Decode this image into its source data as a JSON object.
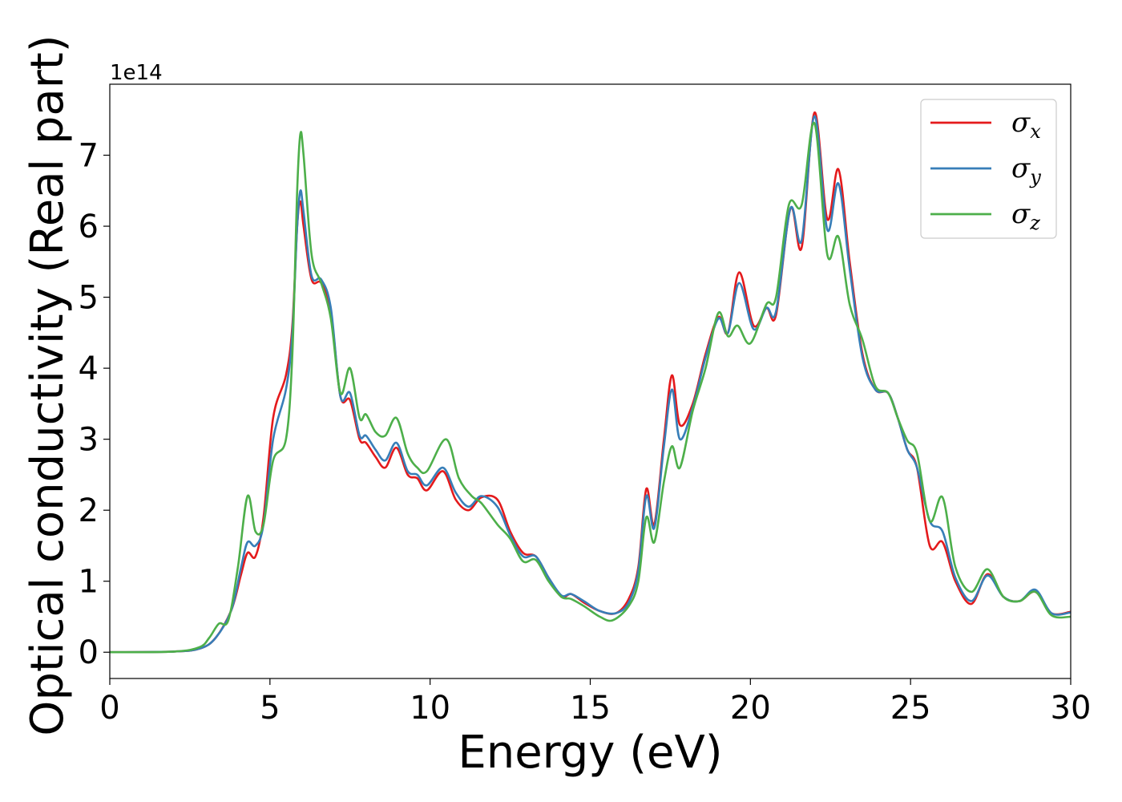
{
  "chart_data": {
    "type": "line",
    "xlabel": "Energy (eV)",
    "ylabel": "Optical conductivity (Real part)",
    "y_offset_label": "1e14",
    "xlim": [
      0,
      30
    ],
    "ylim": [
      -0.37,
      8.0
    ],
    "xticks": [
      0,
      5,
      10,
      15,
      20,
      25,
      30
    ],
    "yticks": [
      0,
      1,
      2,
      3,
      4,
      5,
      6,
      7
    ],
    "grid": false,
    "legend_position": "top-right",
    "series": [
      {
        "name": "σx",
        "symbol": "σ",
        "subscript": "x",
        "color": "#e41a1c",
        "points": [
          [
            0,
            0
          ],
          [
            2,
            0.01
          ],
          [
            2.8,
            0.05
          ],
          [
            3.3,
            0.2
          ],
          [
            3.8,
            0.6
          ],
          [
            4.1,
            1.1
          ],
          [
            4.3,
            1.4
          ],
          [
            4.55,
            1.35
          ],
          [
            4.8,
            1.9
          ],
          [
            5.1,
            3.3
          ],
          [
            5.5,
            3.9
          ],
          [
            5.7,
            4.6
          ],
          [
            5.85,
            6.0
          ],
          [
            5.95,
            6.35
          ],
          [
            6.05,
            6.0
          ],
          [
            6.3,
            5.25
          ],
          [
            6.6,
            5.2
          ],
          [
            6.9,
            4.8
          ],
          [
            7.2,
            3.6
          ],
          [
            7.5,
            3.55
          ],
          [
            7.8,
            3.0
          ],
          [
            8.0,
            2.95
          ],
          [
            8.3,
            2.75
          ],
          [
            8.6,
            2.6
          ],
          [
            8.95,
            2.88
          ],
          [
            9.3,
            2.5
          ],
          [
            9.6,
            2.45
          ],
          [
            9.9,
            2.28
          ],
          [
            10.4,
            2.55
          ],
          [
            10.8,
            2.15
          ],
          [
            11.2,
            2.0
          ],
          [
            11.6,
            2.18
          ],
          [
            12.1,
            2.15
          ],
          [
            12.5,
            1.7
          ],
          [
            12.9,
            1.4
          ],
          [
            13.3,
            1.35
          ],
          [
            13.7,
            1.05
          ],
          [
            14.1,
            0.78
          ],
          [
            14.4,
            0.82
          ],
          [
            14.8,
            0.7
          ],
          [
            15.3,
            0.58
          ],
          [
            15.8,
            0.55
          ],
          [
            16.2,
            0.75
          ],
          [
            16.5,
            1.2
          ],
          [
            16.75,
            2.3
          ],
          [
            17.0,
            1.8
          ],
          [
            17.3,
            3.0
          ],
          [
            17.55,
            3.9
          ],
          [
            17.8,
            3.2
          ],
          [
            18.2,
            3.5
          ],
          [
            18.6,
            4.2
          ],
          [
            19.0,
            4.72
          ],
          [
            19.3,
            4.5
          ],
          [
            19.65,
            5.35
          ],
          [
            20.1,
            4.6
          ],
          [
            20.5,
            4.85
          ],
          [
            20.8,
            4.75
          ],
          [
            21.25,
            6.25
          ],
          [
            21.6,
            5.7
          ],
          [
            22.0,
            7.6
          ],
          [
            22.4,
            6.1
          ],
          [
            22.75,
            6.8
          ],
          [
            23.1,
            5.5
          ],
          [
            23.5,
            4.2
          ],
          [
            23.9,
            3.7
          ],
          [
            24.3,
            3.65
          ],
          [
            24.6,
            3.3
          ],
          [
            24.9,
            2.85
          ],
          [
            25.2,
            2.6
          ],
          [
            25.6,
            1.5
          ],
          [
            26.0,
            1.55
          ],
          [
            26.4,
            1.0
          ],
          [
            26.9,
            0.68
          ],
          [
            27.4,
            1.1
          ],
          [
            27.9,
            0.78
          ],
          [
            28.4,
            0.72
          ],
          [
            28.9,
            0.85
          ],
          [
            29.4,
            0.55
          ],
          [
            30,
            0.57
          ]
        ]
      },
      {
        "name": "σy",
        "symbol": "σ",
        "subscript": "y",
        "color": "#377eb8",
        "points": [
          [
            0,
            0
          ],
          [
            2,
            0.01
          ],
          [
            2.8,
            0.05
          ],
          [
            3.3,
            0.2
          ],
          [
            3.8,
            0.6
          ],
          [
            4.1,
            1.2
          ],
          [
            4.3,
            1.55
          ],
          [
            4.55,
            1.5
          ],
          [
            4.8,
            1.8
          ],
          [
            5.1,
            3.0
          ],
          [
            5.5,
            3.7
          ],
          [
            5.7,
            4.5
          ],
          [
            5.85,
            6.0
          ],
          [
            5.95,
            6.5
          ],
          [
            6.05,
            6.2
          ],
          [
            6.3,
            5.3
          ],
          [
            6.6,
            5.25
          ],
          [
            6.9,
            4.85
          ],
          [
            7.2,
            3.6
          ],
          [
            7.5,
            3.65
          ],
          [
            7.8,
            3.05
          ],
          [
            8.0,
            3.05
          ],
          [
            8.3,
            2.85
          ],
          [
            8.6,
            2.7
          ],
          [
            8.95,
            2.95
          ],
          [
            9.3,
            2.55
          ],
          [
            9.6,
            2.5
          ],
          [
            9.9,
            2.35
          ],
          [
            10.4,
            2.6
          ],
          [
            10.8,
            2.25
          ],
          [
            11.2,
            2.05
          ],
          [
            11.6,
            2.2
          ],
          [
            12.1,
            2.05
          ],
          [
            12.5,
            1.65
          ],
          [
            12.9,
            1.35
          ],
          [
            13.3,
            1.35
          ],
          [
            13.7,
            1.05
          ],
          [
            14.1,
            0.8
          ],
          [
            14.4,
            0.82
          ],
          [
            14.8,
            0.72
          ],
          [
            15.3,
            0.58
          ],
          [
            15.8,
            0.55
          ],
          [
            16.2,
            0.7
          ],
          [
            16.5,
            1.15
          ],
          [
            16.75,
            2.2
          ],
          [
            17.0,
            1.75
          ],
          [
            17.3,
            2.9
          ],
          [
            17.55,
            3.7
          ],
          [
            17.8,
            3.0
          ],
          [
            18.2,
            3.45
          ],
          [
            18.6,
            4.15
          ],
          [
            19.0,
            4.7
          ],
          [
            19.3,
            4.5
          ],
          [
            19.65,
            5.2
          ],
          [
            20.1,
            4.55
          ],
          [
            20.5,
            4.85
          ],
          [
            20.8,
            4.8
          ],
          [
            21.25,
            6.25
          ],
          [
            21.6,
            5.8
          ],
          [
            22.0,
            7.55
          ],
          [
            22.4,
            5.95
          ],
          [
            22.75,
            6.6
          ],
          [
            23.1,
            5.4
          ],
          [
            23.5,
            4.15
          ],
          [
            23.9,
            3.7
          ],
          [
            24.3,
            3.65
          ],
          [
            24.6,
            3.3
          ],
          [
            24.9,
            2.85
          ],
          [
            25.2,
            2.6
          ],
          [
            25.6,
            1.85
          ],
          [
            26.0,
            1.7
          ],
          [
            26.4,
            1.05
          ],
          [
            26.9,
            0.72
          ],
          [
            27.4,
            1.08
          ],
          [
            27.9,
            0.78
          ],
          [
            28.4,
            0.72
          ],
          [
            28.9,
            0.88
          ],
          [
            29.4,
            0.55
          ],
          [
            30,
            0.56
          ]
        ]
      },
      {
        "name": "σz",
        "symbol": "σ",
        "subscript": "z",
        "color": "#4daf4a",
        "points": [
          [
            0,
            0
          ],
          [
            2,
            0.01
          ],
          [
            2.8,
            0.07
          ],
          [
            3.1,
            0.2
          ],
          [
            3.4,
            0.4
          ],
          [
            3.7,
            0.45
          ],
          [
            4.0,
            1.2
          ],
          [
            4.3,
            2.2
          ],
          [
            4.55,
            1.7
          ],
          [
            4.8,
            1.8
          ],
          [
            5.1,
            2.7
          ],
          [
            5.5,
            3.0
          ],
          [
            5.7,
            4.2
          ],
          [
            5.85,
            6.5
          ],
          [
            5.95,
            7.3
          ],
          [
            6.05,
            7.0
          ],
          [
            6.3,
            5.6
          ],
          [
            6.6,
            5.2
          ],
          [
            6.9,
            4.7
          ],
          [
            7.2,
            3.65
          ],
          [
            7.5,
            4.0
          ],
          [
            7.8,
            3.3
          ],
          [
            8.0,
            3.35
          ],
          [
            8.3,
            3.1
          ],
          [
            8.6,
            3.05
          ],
          [
            8.95,
            3.3
          ],
          [
            9.3,
            2.8
          ],
          [
            9.6,
            2.6
          ],
          [
            9.9,
            2.55
          ],
          [
            10.5,
            3.0
          ],
          [
            10.9,
            2.45
          ],
          [
            11.3,
            2.2
          ],
          [
            11.6,
            2.1
          ],
          [
            12.1,
            1.8
          ],
          [
            12.5,
            1.6
          ],
          [
            12.9,
            1.28
          ],
          [
            13.3,
            1.3
          ],
          [
            13.7,
            1.0
          ],
          [
            14.1,
            0.78
          ],
          [
            14.4,
            0.75
          ],
          [
            14.8,
            0.65
          ],
          [
            15.3,
            0.5
          ],
          [
            15.7,
            0.45
          ],
          [
            16.2,
            0.65
          ],
          [
            16.5,
            1.0
          ],
          [
            16.75,
            1.9
          ],
          [
            17.0,
            1.55
          ],
          [
            17.3,
            2.4
          ],
          [
            17.55,
            2.9
          ],
          [
            17.8,
            2.6
          ],
          [
            18.2,
            3.4
          ],
          [
            18.6,
            4.0
          ],
          [
            19.0,
            4.78
          ],
          [
            19.3,
            4.45
          ],
          [
            19.6,
            4.6
          ],
          [
            20.0,
            4.35
          ],
          [
            20.5,
            4.9
          ],
          [
            20.8,
            5.0
          ],
          [
            21.2,
            6.3
          ],
          [
            21.6,
            6.3
          ],
          [
            22.0,
            7.45
          ],
          [
            22.4,
            5.6
          ],
          [
            22.75,
            5.85
          ],
          [
            23.1,
            4.9
          ],
          [
            23.5,
            4.4
          ],
          [
            23.9,
            3.75
          ],
          [
            24.3,
            3.65
          ],
          [
            24.6,
            3.3
          ],
          [
            24.9,
            2.98
          ],
          [
            25.2,
            2.8
          ],
          [
            25.6,
            1.85
          ],
          [
            26.0,
            2.18
          ],
          [
            26.4,
            1.2
          ],
          [
            26.9,
            0.85
          ],
          [
            27.4,
            1.17
          ],
          [
            27.9,
            0.78
          ],
          [
            28.4,
            0.72
          ],
          [
            28.9,
            0.85
          ],
          [
            29.4,
            0.52
          ],
          [
            30,
            0.5
          ]
        ]
      }
    ]
  }
}
